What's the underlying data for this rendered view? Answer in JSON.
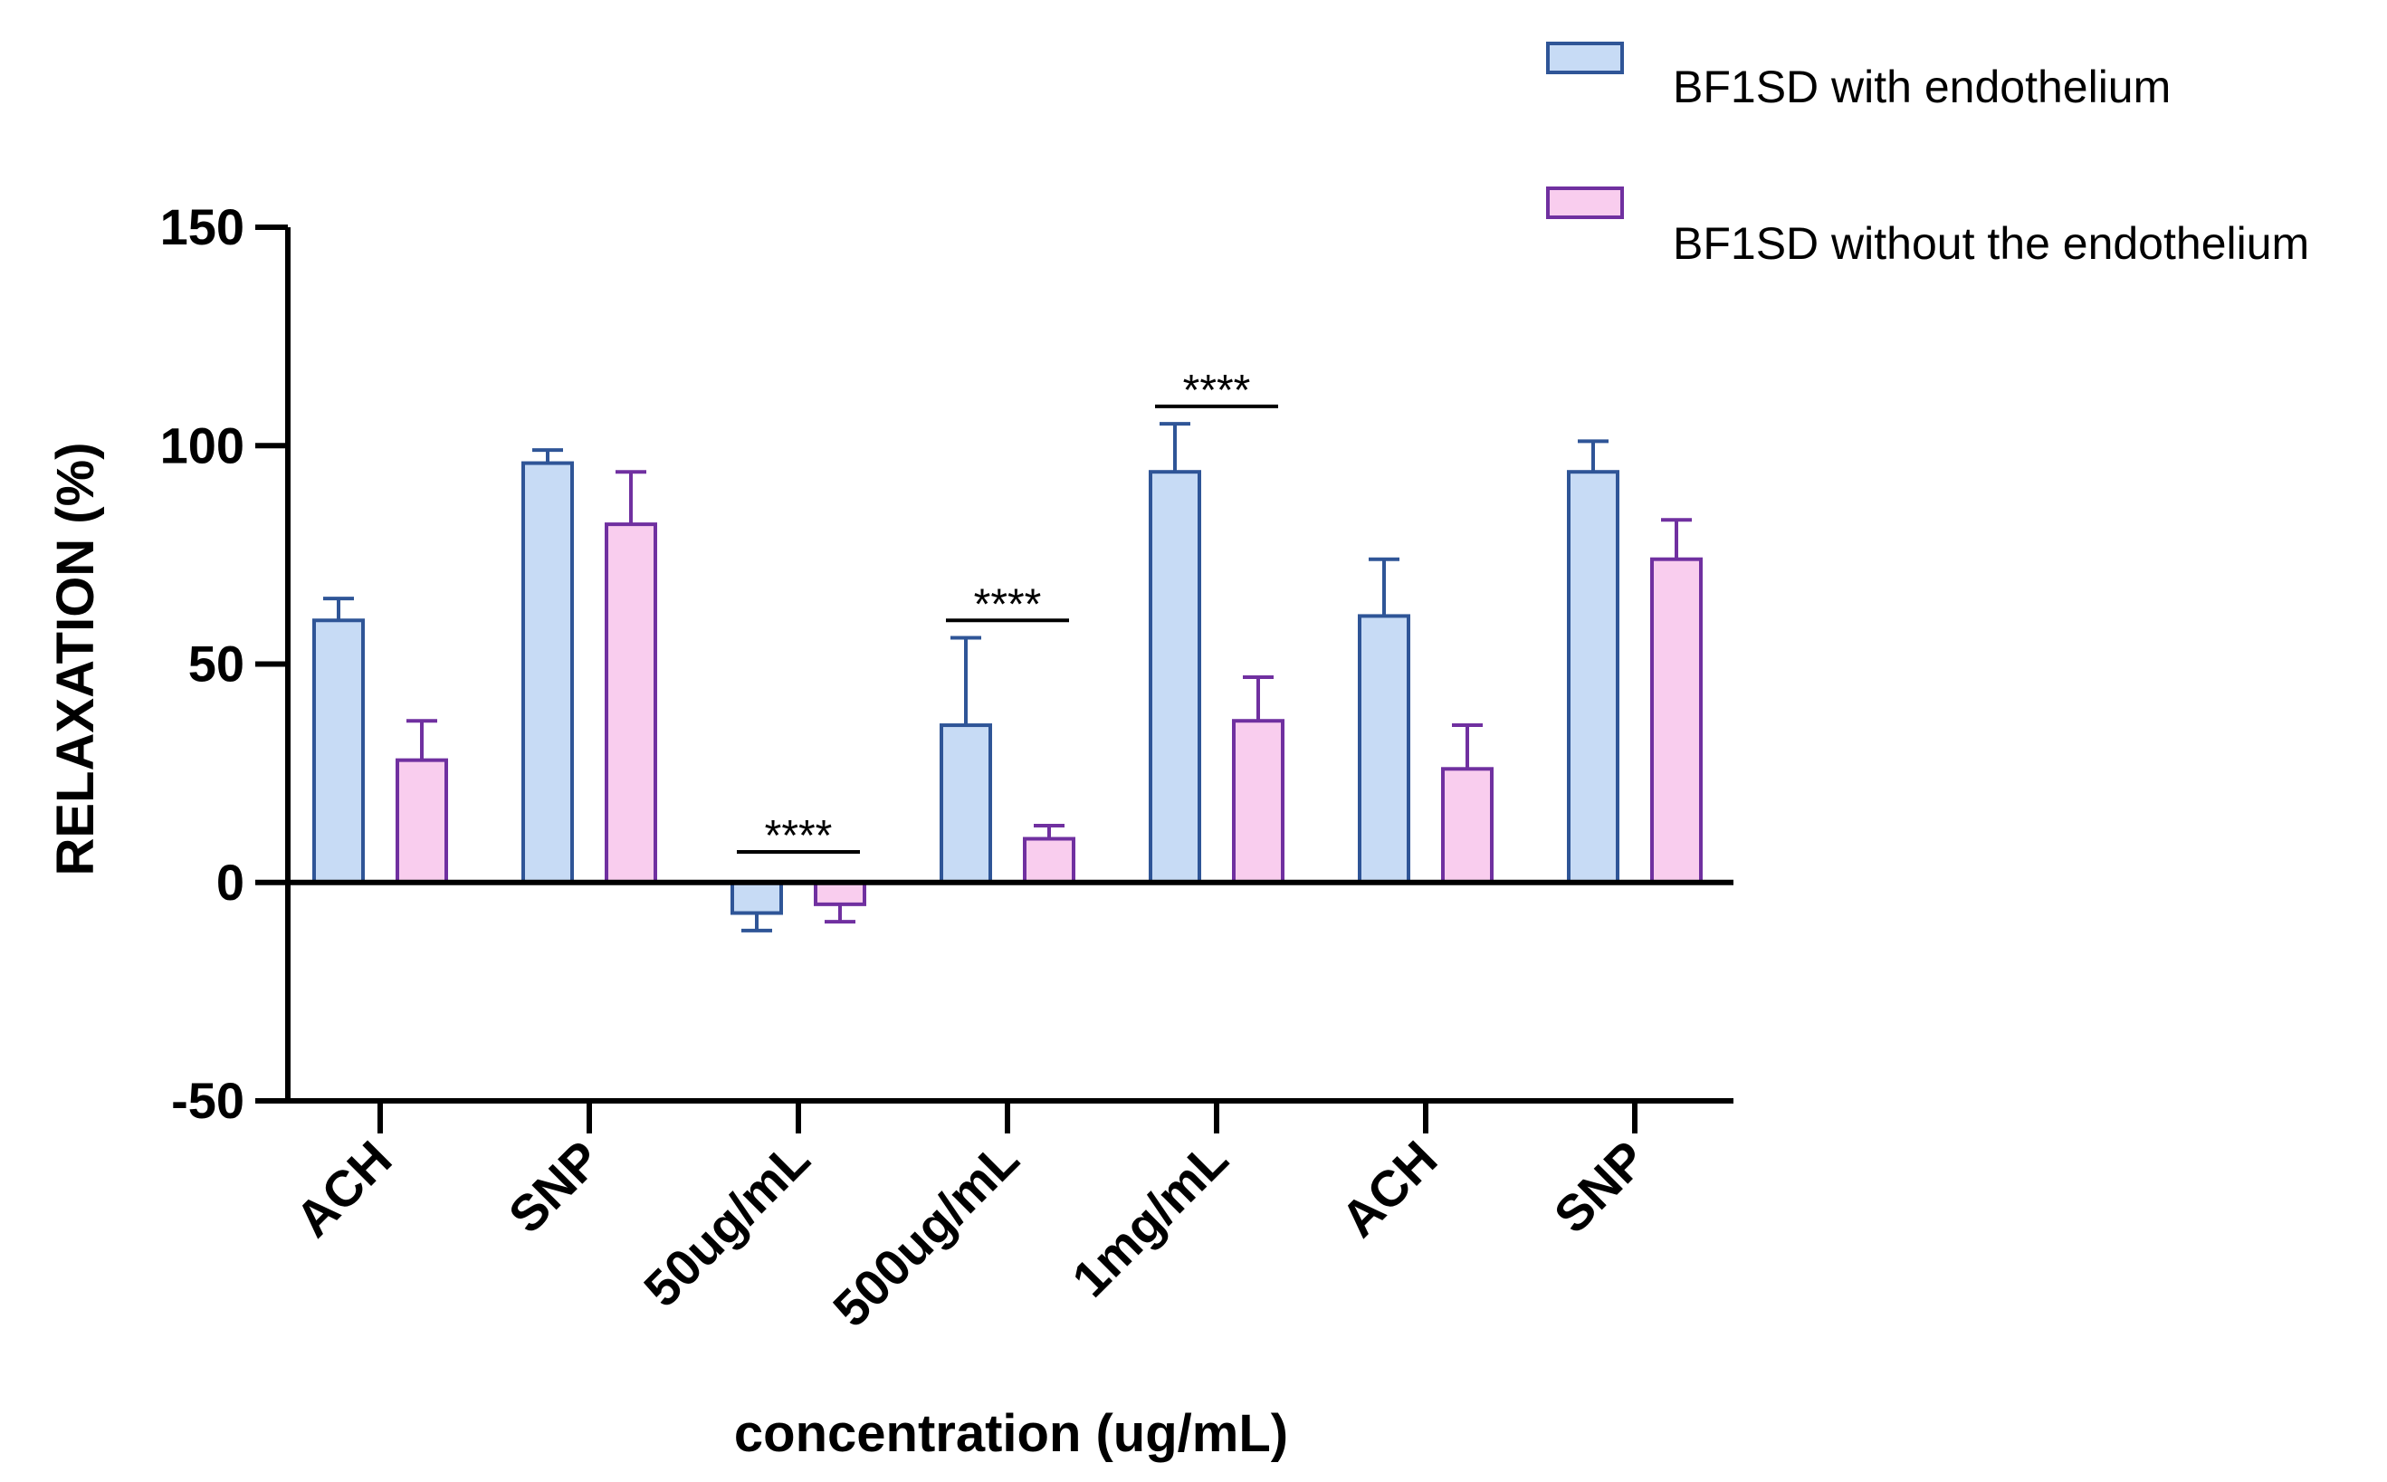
{
  "chart_data": {
    "type": "bar",
    "title": "",
    "xlabel": "concentration (ug/mL)",
    "ylabel": "RELAXATION (%)",
    "ylim": [
      -50,
      150
    ],
    "yticks": [
      -50,
      0,
      50,
      100,
      150
    ],
    "ytick_labels": [
      "-50",
      "0",
      "50",
      "100",
      "150"
    ],
    "grid": false,
    "categories": [
      "ACH",
      "SNP",
      "50ug/mL",
      "500ug/mL",
      "1mg/mL",
      "ACH",
      "SNP"
    ],
    "series": [
      {
        "name": "BF1SD with endothelium",
        "values": [
          60,
          96,
          -7,
          36,
          94,
          61,
          94
        ],
        "error": [
          5,
          3,
          4,
          20,
          11,
          13,
          7
        ],
        "fill": "#c7dbf5",
        "stroke": "#2f5597"
      },
      {
        "name": "BF1SD without the endothelium",
        "values": [
          28,
          82,
          -5,
          10,
          37,
          26,
          74
        ],
        "error": [
          9,
          12,
          4,
          3,
          10,
          10,
          9
        ],
        "fill": "#f9cdee",
        "stroke": "#7030a0"
      }
    ],
    "legend_position": "top-right",
    "annotations": [
      {
        "category_index": 2,
        "text": "****",
        "y": 7
      },
      {
        "category_index": 3,
        "text": "****",
        "y": 60
      },
      {
        "category_index": 4,
        "text": "****",
        "y": 109
      }
    ]
  }
}
